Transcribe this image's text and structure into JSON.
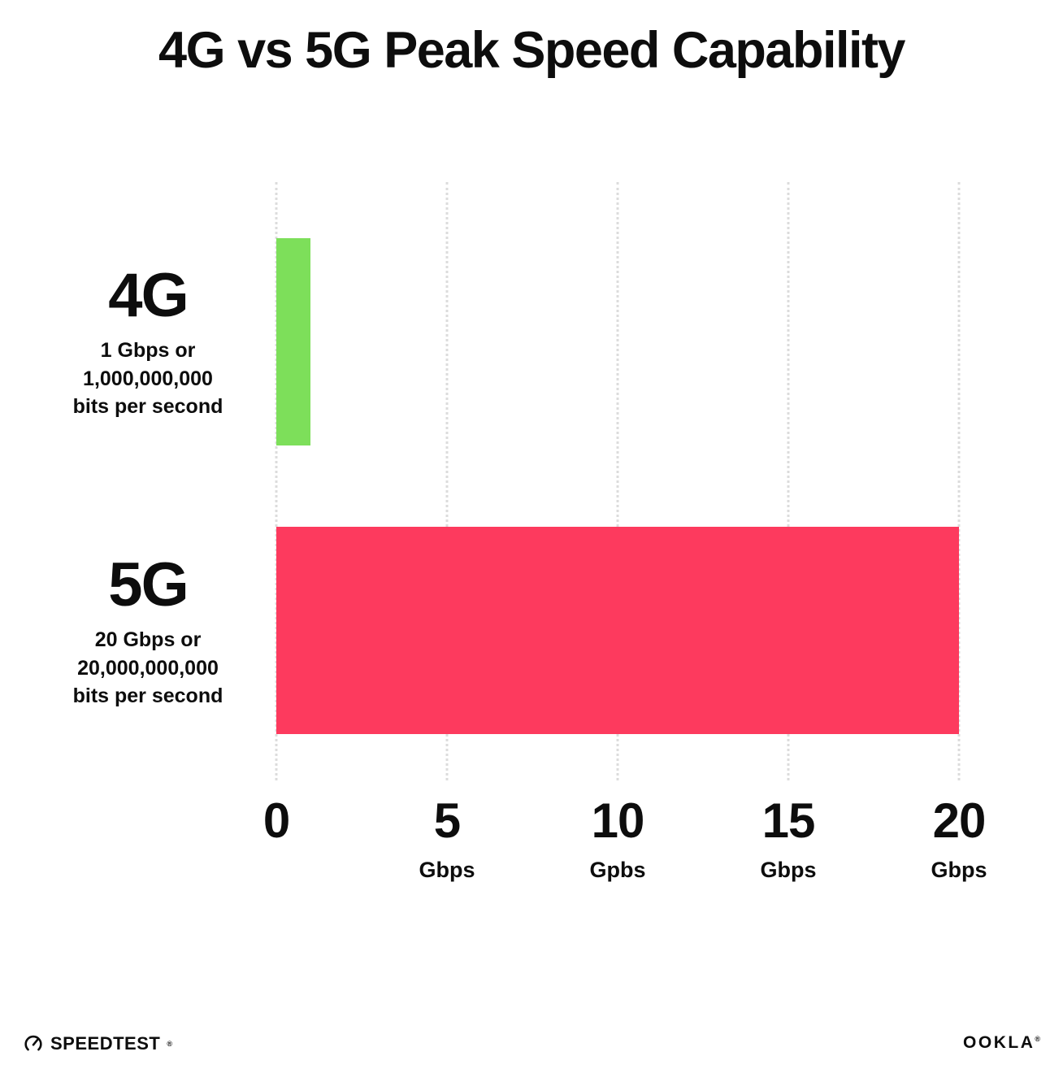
{
  "title": "4G vs 5G Peak Speed Capability",
  "chart_data": {
    "type": "bar",
    "orientation": "horizontal",
    "title": "4G vs 5G Peak Speed Capability",
    "xlim": [
      0,
      20
    ],
    "grid": "vertical-dotted",
    "rows": [
      {
        "label": "4G",
        "description": "1 Gbps or\n1,000,000,000\nbits per second",
        "value": 1,
        "unit": "Gbps",
        "color": "#7ddf5a"
      },
      {
        "label": "5G",
        "description": "20 Gbps or\n20,000,000,000\nbits per second",
        "value": 20,
        "unit": "Gbps",
        "color": "#fd3a5e"
      }
    ],
    "x_ticks": [
      {
        "value": 0,
        "number": "0",
        "unit": ""
      },
      {
        "value": 5,
        "number": "5",
        "unit": "Gbps"
      },
      {
        "value": 10,
        "number": "10",
        "unit": "Gpbs"
      },
      {
        "value": 15,
        "number": "15",
        "unit": "Gbps"
      },
      {
        "value": 20,
        "number": "20",
        "unit": "Gbps"
      }
    ]
  },
  "footer": {
    "speedtest_label": "SPEEDTEST",
    "speedtest_mark": "®",
    "ookla_label": "OOKLA",
    "ookla_mark": "®"
  }
}
